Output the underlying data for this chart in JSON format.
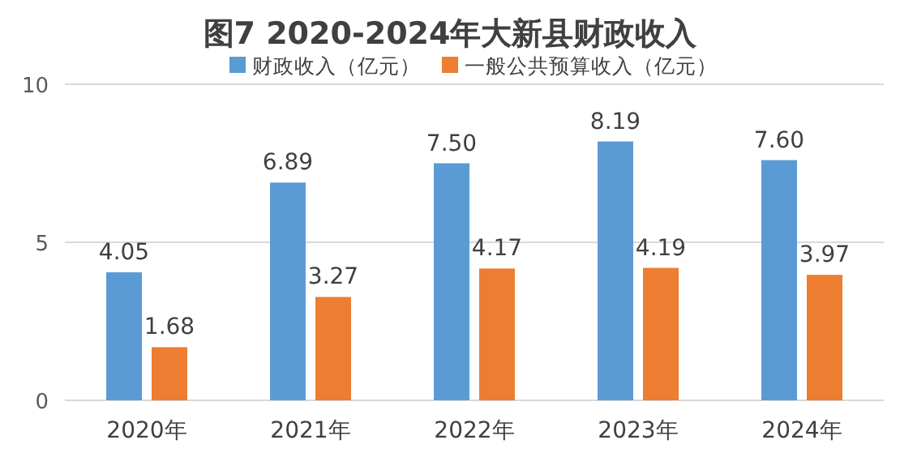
{
  "chart_data": {
    "type": "bar",
    "title": "图7  2020-2024年大新县财政收入",
    "categories": [
      "2020年",
      "2021年",
      "2022年",
      "2023年",
      "2024年"
    ],
    "series": [
      {
        "name": "财政收入（亿元）",
        "color": "#5b9bd5",
        "values": [
          4.05,
          6.89,
          7.5,
          8.19,
          7.6
        ],
        "value_labels": [
          "4.05",
          "6.89",
          "7.50",
          "8.19",
          "7.60"
        ]
      },
      {
        "name": "一般公共预算收入（亿元）",
        "color": "#ed7d31",
        "values": [
          1.68,
          3.27,
          4.17,
          4.19,
          3.97
        ],
        "value_labels": [
          "1.68",
          "3.27",
          "4.17",
          "4.19",
          "3.97"
        ]
      }
    ],
    "ylim": [
      0,
      10
    ],
    "yticks": [
      0,
      5,
      10
    ],
    "grid": "y",
    "legend": "top"
  }
}
